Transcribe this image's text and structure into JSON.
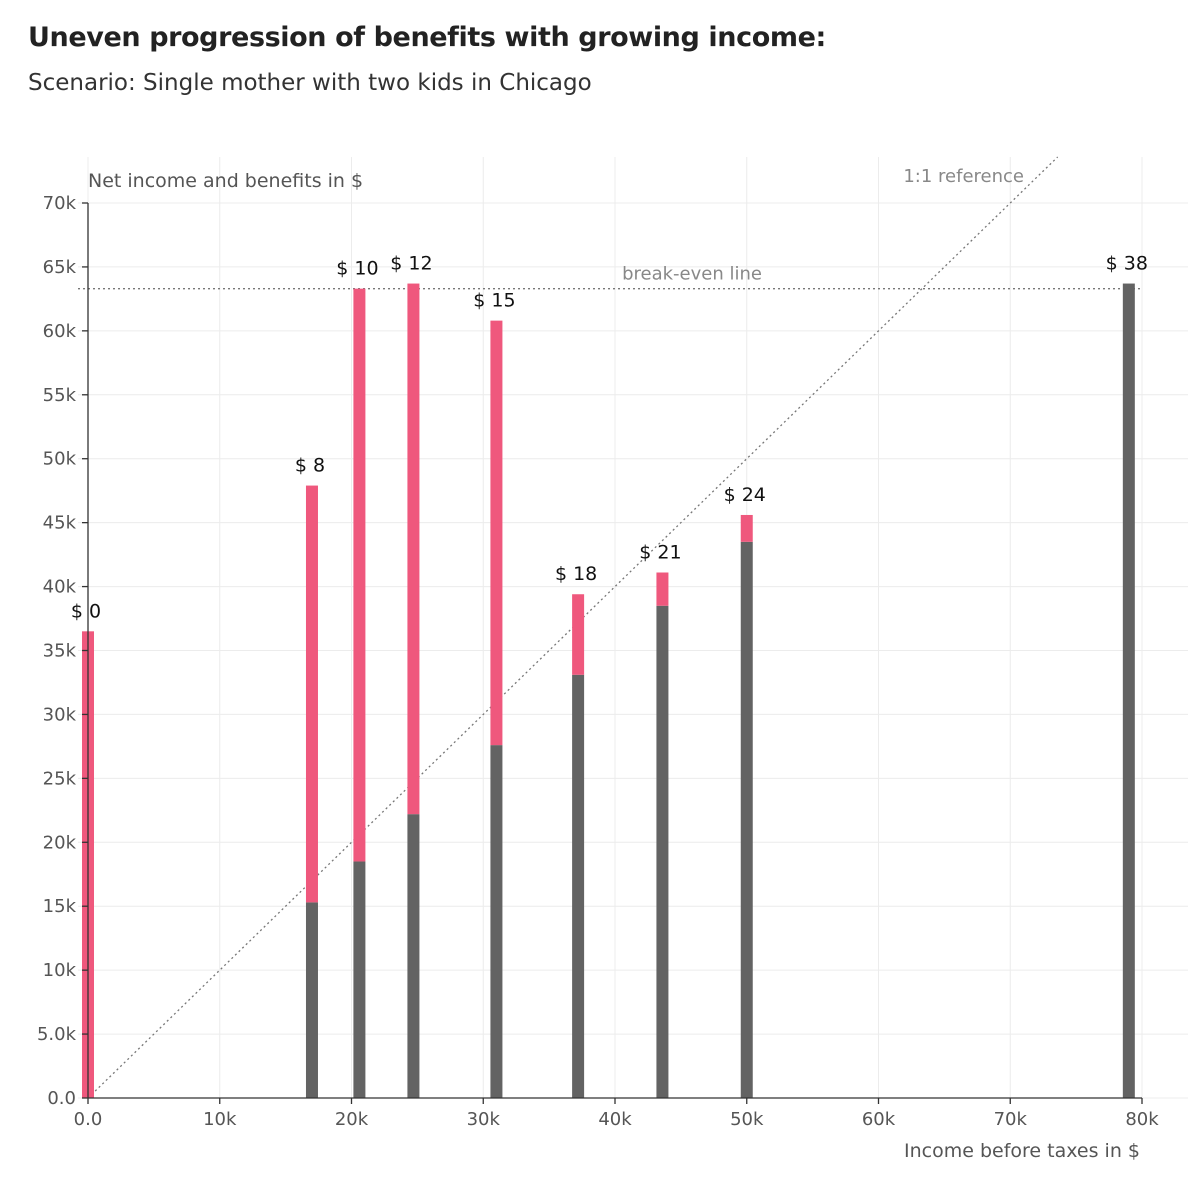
{
  "header": {
    "title": "Uneven progression of benefits with growing income:",
    "subtitle": "Scenario: Single mother with two kids in Chicago"
  },
  "colors": {
    "earnings": "#636363",
    "benefits": "#ef587d",
    "grid": "#ececec",
    "reference": "#888888"
  },
  "chart_data": {
    "type": "bar",
    "stacked": true,
    "xlabel": "Income before taxes in $",
    "ylabel": "Net income and benefits in $",
    "xlim": [
      0,
      80000
    ],
    "ylim": [
      0,
      70000
    ],
    "grid": true,
    "x_ticks": [
      0,
      10000,
      20000,
      30000,
      40000,
      50000,
      60000,
      70000,
      80000
    ],
    "x_tick_labels": [
      "0.0",
      "10k",
      "20k",
      "30k",
      "40k",
      "50k",
      "60k",
      "70k",
      "80k"
    ],
    "y_ticks": [
      0,
      5000,
      10000,
      15000,
      20000,
      25000,
      30000,
      35000,
      40000,
      45000,
      50000,
      55000,
      60000,
      65000,
      70000
    ],
    "y_tick_labels": [
      "0.0",
      "5.0k",
      "10k",
      "15k",
      "20k",
      "25k",
      "30k",
      "35k",
      "40k",
      "45k",
      "50k",
      "55k",
      "60k",
      "65k",
      "70k"
    ],
    "x": [
      0,
      17000,
      20600,
      24700,
      31000,
      37200,
      43600,
      50000,
      79000
    ],
    "bar_labels": [
      "$ 0",
      "$ 8",
      "$ 10",
      "$ 12",
      "$ 15",
      "$ 18",
      "$ 21",
      "$ 24",
      "$ 38"
    ],
    "series": [
      {
        "values": [
          0,
          15300,
          18500,
          22200,
          27600,
          33100,
          38500,
          43500,
          63700
        ]
      },
      {
        "values": [
          36500,
          32600,
          44800,
          41500,
          33200,
          6300,
          2600,
          2100,
          0
        ]
      }
    ],
    "reference_lines": [
      {
        "kind": "horizontal",
        "y": 63300,
        "label": "break-even line"
      },
      {
        "kind": "diagonal",
        "slope": 1,
        "label": "1:1 reference"
      }
    ]
  }
}
